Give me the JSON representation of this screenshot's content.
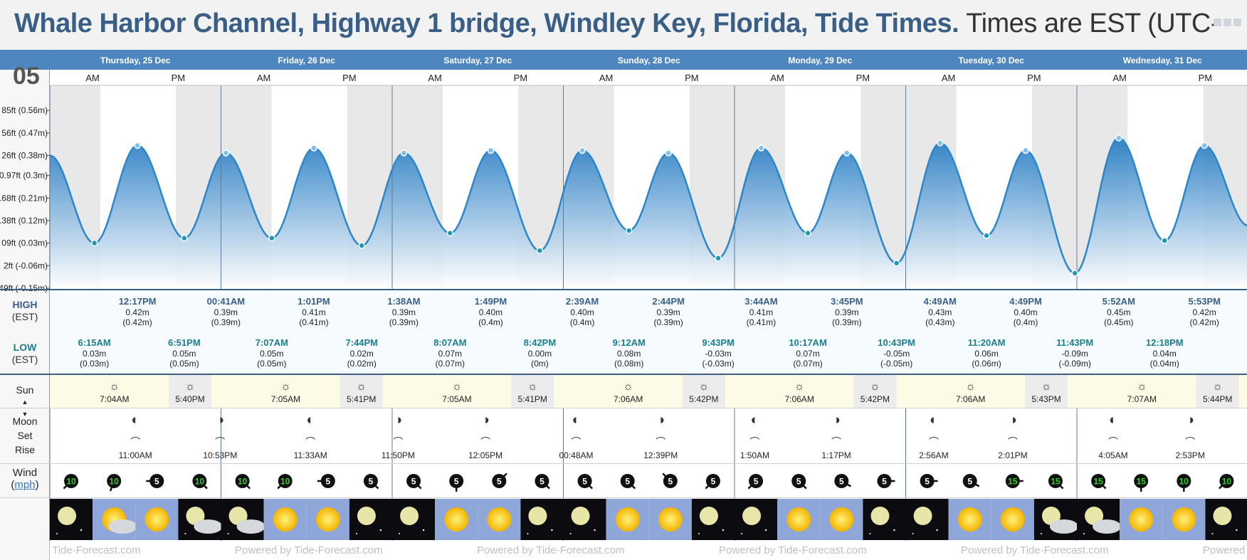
{
  "page": {
    "title_bold": "Whale Harbor Channel, Highway 1 bridge, Windley Key, Florida, Tide Times.",
    "title_rest": "Times are EST (UTC-",
    "big_number": "05",
    "footer": "Powered by Tide-Forecast.com"
  },
  "rows": {
    "high_label": "HIGH",
    "high_tz": "(EST)",
    "low_label": "LOW",
    "low_tz": "(EST)",
    "sun_label": "Sun",
    "moon_label": "Moon",
    "moon_set": "Set",
    "moon_rise": "Rise",
    "wind_label": "Wind",
    "wind_unit": "mph"
  },
  "colors": {
    "header_blue": "#4e86c0",
    "title_blue": "#3a5f86",
    "tide_blue": "#2d86c8",
    "low_teal": "#1b7d8e",
    "sun_yellow": "#fdfbe6",
    "night_gray": "#e8e8e8",
    "wind_green": "#33cc33"
  },
  "chart_data": {
    "type": "area",
    "title": "Whale Harbor Channel, Highway 1 bridge, Windley Key, Florida, Tide Times.",
    "ylabel": "",
    "y_ticks": [
      {
        "v": 0.56,
        "label": "85ft (0.56m)"
      },
      {
        "v": 0.47,
        "label": "56ft (0.47m)"
      },
      {
        "v": 0.38,
        "label": "26ft (0.38m)"
      },
      {
        "v": 0.3,
        "label": "0.97ft (0.3m)"
      },
      {
        "v": 0.21,
        "label": "0.68ft (0.21m)"
      },
      {
        "v": 0.12,
        "label": "0.38ft (0.12m)"
      },
      {
        "v": 0.03,
        "label": "09ft (0.03m)"
      },
      {
        "v": -0.06,
        "label": "2ft (-0.06m)"
      },
      {
        "v": -0.15,
        "label": "49ft (-0.15m)"
      }
    ],
    "ylim": [
      -0.15,
      0.66
    ],
    "start_value": 0.38,
    "end_value": 0.1,
    "days": [
      {
        "label": "Thursday, 25 Dec",
        "am": "AM",
        "pm": "PM",
        "highs": [
          {
            "time": "",
            "ft": "",
            "m": ""
          },
          {
            "time": "12:17PM",
            "ft": "0.42m",
            "m": "(0.42m)"
          }
        ],
        "lows": [
          {
            "time": "6:15AM",
            "ft": "0.03m",
            "m": "(0.03m)"
          },
          {
            "time": "6:51PM",
            "ft": "0.05m",
            "m": "(0.05m)"
          }
        ],
        "sunrise": "7:04AM",
        "sunset": "5:40PM",
        "moon": [
          {
            "time": "11:00AM",
            "type": "rise"
          },
          {
            "time": "10:53PM",
            "type": "set"
          }
        ],
        "wind": [
          10,
          10,
          5,
          10
        ],
        "wind_dirs": [
          225,
          200,
          270,
          135
        ],
        "weather": [
          "night",
          "partly",
          "sun",
          "night-cloud"
        ]
      },
      {
        "label": "Friday, 26 Dec",
        "am": "AM",
        "pm": "PM",
        "highs": [
          {
            "time": "00:41AM",
            "ft": "0.39m",
            "m": "(0.39m)"
          },
          {
            "time": "1:01PM",
            "ft": "0.41m",
            "m": "(0.41m)"
          }
        ],
        "lows": [
          {
            "time": "7:07AM",
            "ft": "0.05m",
            "m": "(0.05m)"
          },
          {
            "time": "7:44PM",
            "ft": "0.02m",
            "m": "(0.02m)"
          }
        ],
        "sunrise": "7:05AM",
        "sunset": "5:41PM",
        "moon": [
          {
            "time": "11:33AM",
            "type": "rise"
          },
          {
            "time": "11:50PM",
            "type": "set"
          }
        ],
        "wind": [
          10,
          10,
          5,
          5
        ],
        "wind_dirs": [
          135,
          225,
          270,
          135
        ],
        "weather": [
          "night-cloud",
          "sun",
          "sun",
          "night"
        ]
      },
      {
        "label": "Saturday, 27 Dec",
        "am": "AM",
        "pm": "PM",
        "highs": [
          {
            "time": "1:38AM",
            "ft": "0.39m",
            "m": "(0.39m)"
          },
          {
            "time": "1:49PM",
            "ft": "0.40m",
            "m": "(0.4m)"
          }
        ],
        "lows": [
          {
            "time": "8:07AM",
            "ft": "0.07m",
            "m": "(0.07m)"
          },
          {
            "time": "8:42PM",
            "ft": "0.00m",
            "m": "(0m)"
          }
        ],
        "sunrise": "7:05AM",
        "sunset": "5:41PM",
        "moon": [
          {
            "time": "",
            "type": ""
          },
          {
            "time": "12:05PM",
            "type": "rise"
          }
        ],
        "wind": [
          5,
          5,
          5,
          5
        ],
        "wind_dirs": [
          135,
          180,
          45,
          135
        ],
        "weather": [
          "night",
          "sun",
          "sun",
          "night"
        ]
      },
      {
        "label": "Sunday, 28 Dec",
        "am": "AM",
        "pm": "PM",
        "highs": [
          {
            "time": "2:39AM",
            "ft": "0.40m",
            "m": "(0.4m)"
          },
          {
            "time": "2:44PM",
            "ft": "0.39m",
            "m": "(0.39m)"
          }
        ],
        "lows": [
          {
            "time": "9:12AM",
            "ft": "0.08m",
            "m": "(0.08m)"
          },
          {
            "time": "9:43PM",
            "ft": "-0.03m",
            "m": "(-0.03m)"
          }
        ],
        "sunrise": "7:06AM",
        "sunset": "5:42PM",
        "moon": [
          {
            "time": "00:48AM",
            "type": "set"
          },
          {
            "time": "12:39PM",
            "type": "rise"
          }
        ],
        "wind": [
          5,
          5,
          5,
          5
        ],
        "wind_dirs": [
          135,
          135,
          315,
          225
        ],
        "weather": [
          "night",
          "sun",
          "sun",
          "night"
        ]
      },
      {
        "label": "Monday, 29 Dec",
        "am": "AM",
        "pm": "PM",
        "highs": [
          {
            "time": "3:44AM",
            "ft": "0.41m",
            "m": "(0.41m)"
          },
          {
            "time": "3:45PM",
            "ft": "0.39m",
            "m": "(0.39m)"
          }
        ],
        "lows": [
          {
            "time": "10:17AM",
            "ft": "0.07m",
            "m": "(0.07m)"
          },
          {
            "time": "10:43PM",
            "ft": "-0.05m",
            "m": "(-0.05m)"
          }
        ],
        "sunrise": "7:06AM",
        "sunset": "5:42PM",
        "moon": [
          {
            "time": "1:50AM",
            "type": "set"
          },
          {
            "time": "1:17PM",
            "type": "rise"
          }
        ],
        "wind": [
          5,
          5,
          5,
          5
        ],
        "wind_dirs": [
          225,
          135,
          120,
          90
        ],
        "weather": [
          "night",
          "sun",
          "sun",
          "night"
        ]
      },
      {
        "label": "Tuesday, 30 Dec",
        "am": "AM",
        "pm": "PM",
        "highs": [
          {
            "time": "4:49AM",
            "ft": "0.43m",
            "m": "(0.43m)"
          },
          {
            "time": "4:49PM",
            "ft": "0.40m",
            "m": "(0.4m)"
          }
        ],
        "lows": [
          {
            "time": "11:20AM",
            "ft": "0.06m",
            "m": "(0.06m)"
          },
          {
            "time": "11:43PM",
            "ft": "-0.09m",
            "m": "(-0.09m)"
          }
        ],
        "sunrise": "7:06AM",
        "sunset": "5:43PM",
        "moon": [
          {
            "time": "2:56AM",
            "type": "set"
          },
          {
            "time": "2:01PM",
            "type": "rise"
          }
        ],
        "wind": [
          5,
          5,
          15,
          15
        ],
        "wind_dirs": [
          90,
          120,
          90,
          135
        ],
        "weather": [
          "night",
          "sun",
          "sun",
          "night-cloud"
        ]
      },
      {
        "label": "Wednesday, 31 Dec",
        "am": "AM",
        "pm": "PM",
        "highs": [
          {
            "time": "5:52AM",
            "ft": "0.45m",
            "m": "(0.45m)"
          },
          {
            "time": "5:53PM",
            "ft": "0.42m",
            "m": "(0.42m)"
          }
        ],
        "lows": [
          {
            "time": "",
            "ft": "",
            "m": ""
          },
          {
            "time": "12:18PM",
            "ft": "0.04m",
            "m": "(0.04m)"
          }
        ],
        "sunrise": "7:07AM",
        "sunset": "5:44PM",
        "moon": [
          {
            "time": "4:05AM",
            "type": "set"
          },
          {
            "time": "2:53PM",
            "type": "rise"
          }
        ],
        "wind": [
          15,
          15,
          10,
          10
        ],
        "wind_dirs": [
          135,
          180,
          180,
          225
        ],
        "weather": [
          "night-cloud",
          "sun",
          "sun",
          "night"
        ]
      }
    ]
  }
}
